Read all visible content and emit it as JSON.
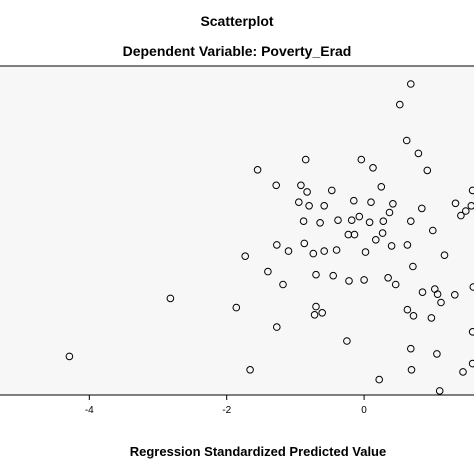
{
  "chart_data": {
    "type": "scatter",
    "title": "Scatterplot",
    "subtitle": "Dependent Variable: Poverty_Erad",
    "xlabel": "Regression Standardized Predicted Value",
    "ylabel": "",
    "xlim": [
      -5.3,
      1.6
    ],
    "ylim": [
      -3.2,
      3.2
    ],
    "xticks": [
      -4,
      -2,
      0
    ],
    "xtick_labels": [
      "-4",
      "-2",
      "0"
    ],
    "grid": false,
    "plot_background": "#f7f7f7",
    "marker": "open-circle",
    "points": [
      [
        0.68,
        2.85
      ],
      [
        0.52,
        2.45
      ],
      [
        0.62,
        1.75
      ],
      [
        0.79,
        1.5
      ],
      [
        -0.85,
        1.38
      ],
      [
        -0.04,
        1.38
      ],
      [
        0.13,
        1.22
      ],
      [
        0.92,
        1.17
      ],
      [
        -1.55,
        1.18
      ],
      [
        -1.28,
        0.88
      ],
      [
        -0.92,
        0.88
      ],
      [
        -0.83,
        0.75
      ],
      [
        -0.47,
        0.78
      ],
      [
        0.25,
        0.85
      ],
      [
        -0.95,
        0.55
      ],
      [
        -0.8,
        0.48
      ],
      [
        -0.58,
        0.48
      ],
      [
        -0.15,
        0.58
      ],
      [
        0.1,
        0.55
      ],
      [
        0.42,
        0.52
      ],
      [
        0.84,
        0.43
      ],
      [
        1.33,
        0.53
      ],
      [
        1.48,
        0.38
      ],
      [
        1.58,
        0.78
      ],
      [
        -0.88,
        0.18
      ],
      [
        -0.64,
        0.15
      ],
      [
        -0.38,
        0.2
      ],
      [
        -0.18,
        0.2
      ],
      [
        -0.07,
        0.27
      ],
      [
        0.08,
        0.16
      ],
      [
        0.28,
        0.18
      ],
      [
        0.37,
        0.35
      ],
      [
        0.68,
        0.18
      ],
      [
        1.0,
        0.0
      ],
      [
        1.41,
        0.29
      ],
      [
        1.56,
        0.48
      ],
      [
        -1.73,
        -0.5
      ],
      [
        -1.27,
        -0.28
      ],
      [
        -1.1,
        -0.4
      ],
      [
        -0.87,
        -0.25
      ],
      [
        -0.74,
        -0.45
      ],
      [
        -0.58,
        -0.4
      ],
      [
        -0.4,
        -0.38
      ],
      [
        -0.23,
        -0.08
      ],
      [
        -0.14,
        -0.08
      ],
      [
        0.02,
        -0.42
      ],
      [
        0.17,
        -0.18
      ],
      [
        0.27,
        -0.05
      ],
      [
        0.4,
        -0.3
      ],
      [
        0.63,
        -0.28
      ],
      [
        1.17,
        -0.48
      ],
      [
        -1.4,
        -0.8
      ],
      [
        -1.18,
        -1.05
      ],
      [
        -0.7,
        -0.86
      ],
      [
        -0.45,
        -0.88
      ],
      [
        -0.22,
        -0.98
      ],
      [
        0.0,
        -0.96
      ],
      [
        0.35,
        -0.92
      ],
      [
        0.46,
        -1.05
      ],
      [
        0.71,
        -0.7
      ],
      [
        0.85,
        -1.2
      ],
      [
        1.03,
        -1.14
      ],
      [
        1.59,
        -1.1
      ],
      [
        -2.82,
        -1.32
      ],
      [
        -1.86,
        -1.5
      ],
      [
        -0.7,
        -1.48
      ],
      [
        -0.61,
        -1.6
      ],
      [
        -0.72,
        -1.64
      ],
      [
        1.12,
        -1.4
      ],
      [
        1.07,
        -1.24
      ],
      [
        0.63,
        -1.54
      ],
      [
        0.72,
        -1.66
      ],
      [
        0.98,
        -1.7
      ],
      [
        -1.27,
        -1.88
      ],
      [
        -0.25,
        -2.15
      ],
      [
        1.32,
        -1.25
      ],
      [
        0.68,
        -2.3
      ],
      [
        1.06,
        -2.4
      ],
      [
        1.58,
        -1.97
      ],
      [
        -4.29,
        -2.45
      ],
      [
        -1.66,
        -2.71
      ],
      [
        0.22,
        -2.9
      ],
      [
        0.69,
        -2.71
      ],
      [
        1.58,
        -2.59
      ],
      [
        1.44,
        -2.75
      ],
      [
        1.1,
        -3.12
      ]
    ]
  }
}
